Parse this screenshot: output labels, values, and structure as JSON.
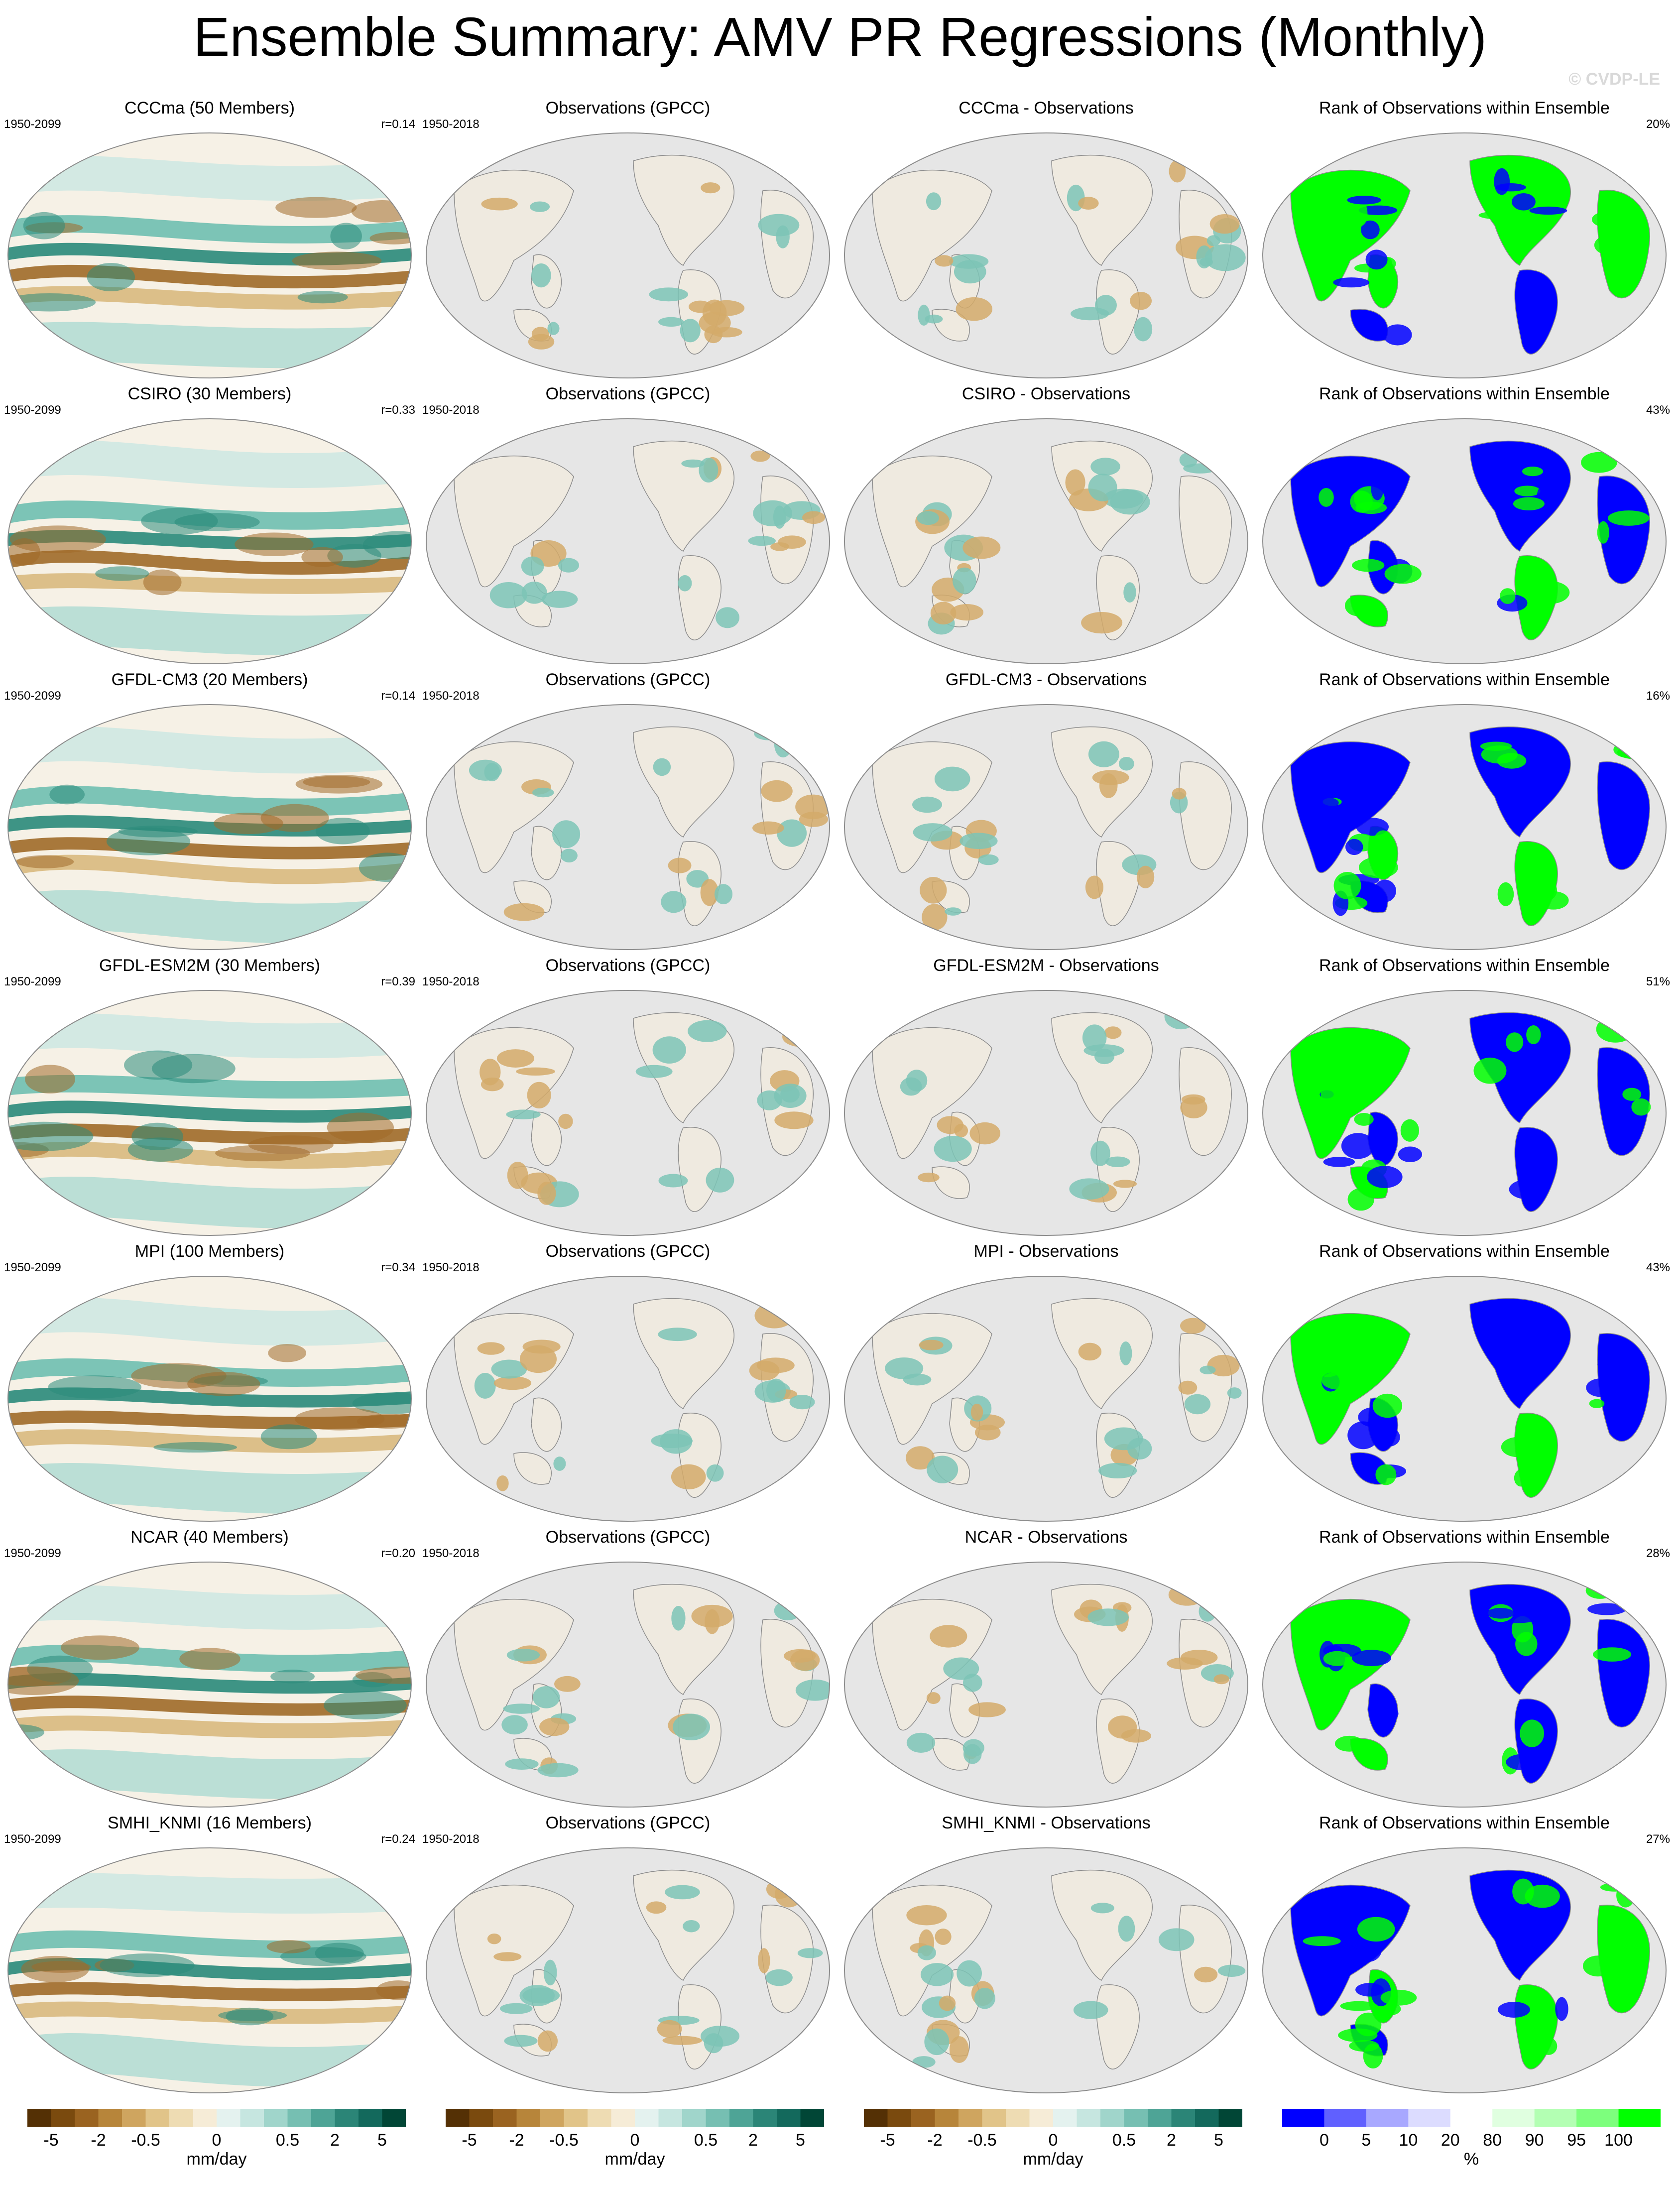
{
  "title": "Ensemble Summary: AMV PR Regressions (Monthly)",
  "copyright": "© CVDP-LE",
  "columns": {
    "obs_title": "Observations (GPCC)",
    "obs_period": "1950-2018",
    "rank_title": "Rank of Observations within Ensemble",
    "model_period": "1950-2099"
  },
  "rows": [
    {
      "model": "CCCma (50 Members)",
      "r": "r=0.14",
      "diff": "CCCma - Observations",
      "rank_pct": "20%"
    },
    {
      "model": "CSIRO (30 Members)",
      "r": "r=0.33",
      "diff": "CSIRO - Observations",
      "rank_pct": "43%"
    },
    {
      "model": "GFDL-CM3 (20 Members)",
      "r": "r=0.14",
      "diff": "GFDL-CM3 - Observations",
      "rank_pct": "16%"
    },
    {
      "model": "GFDL-ESM2M (30 Members)",
      "r": "r=0.39",
      "diff": "GFDL-ESM2M - Observations",
      "rank_pct": "51%"
    },
    {
      "model": "MPI (100 Members)",
      "r": "r=0.34",
      "diff": "MPI - Observations",
      "rank_pct": "43%"
    },
    {
      "model": "NCAR (40 Members)",
      "r": "r=0.20",
      "diff": "NCAR - Observations",
      "rank_pct": "28%"
    },
    {
      "model": "SMHI_KNMI (16 Members)",
      "r": "r=0.24",
      "diff": "SMHI_KNMI - Observations",
      "rank_pct": "27%"
    }
  ],
  "colorbars": {
    "precip": {
      "ticks": [
        "-5",
        "-2",
        "-0.5",
        "0",
        "0.5",
        "2",
        "5"
      ],
      "unit": "mm/day",
      "colors": [
        "#543005",
        "#7a4a0e",
        "#9a6320",
        "#b7853a",
        "#cfa55f",
        "#e1c489",
        "#eedcb3",
        "#f6ecd7",
        "#e4f2ef",
        "#c6e6e0",
        "#a0d5cb",
        "#76bfb2",
        "#4ea496",
        "#2b8577",
        "#13695c",
        "#014636"
      ]
    },
    "rank": {
      "ticks": [
        "0",
        "5",
        "10",
        "20",
        "80",
        "90",
        "95",
        "100"
      ],
      "unit": "%",
      "colors": [
        "#0000ff",
        "#6060ff",
        "#a8a8ff",
        "#dcdcff",
        "#ffffff",
        "#e0ffe0",
        "#b3ffb3",
        "#7dff7d",
        "#00ff00"
      ]
    }
  },
  "colors": {
    "land_gray": "#e6e6e6",
    "brown": "#a06a28",
    "teal": "#2a8a7a",
    "blue": "#0000ff",
    "green": "#00ff00"
  }
}
